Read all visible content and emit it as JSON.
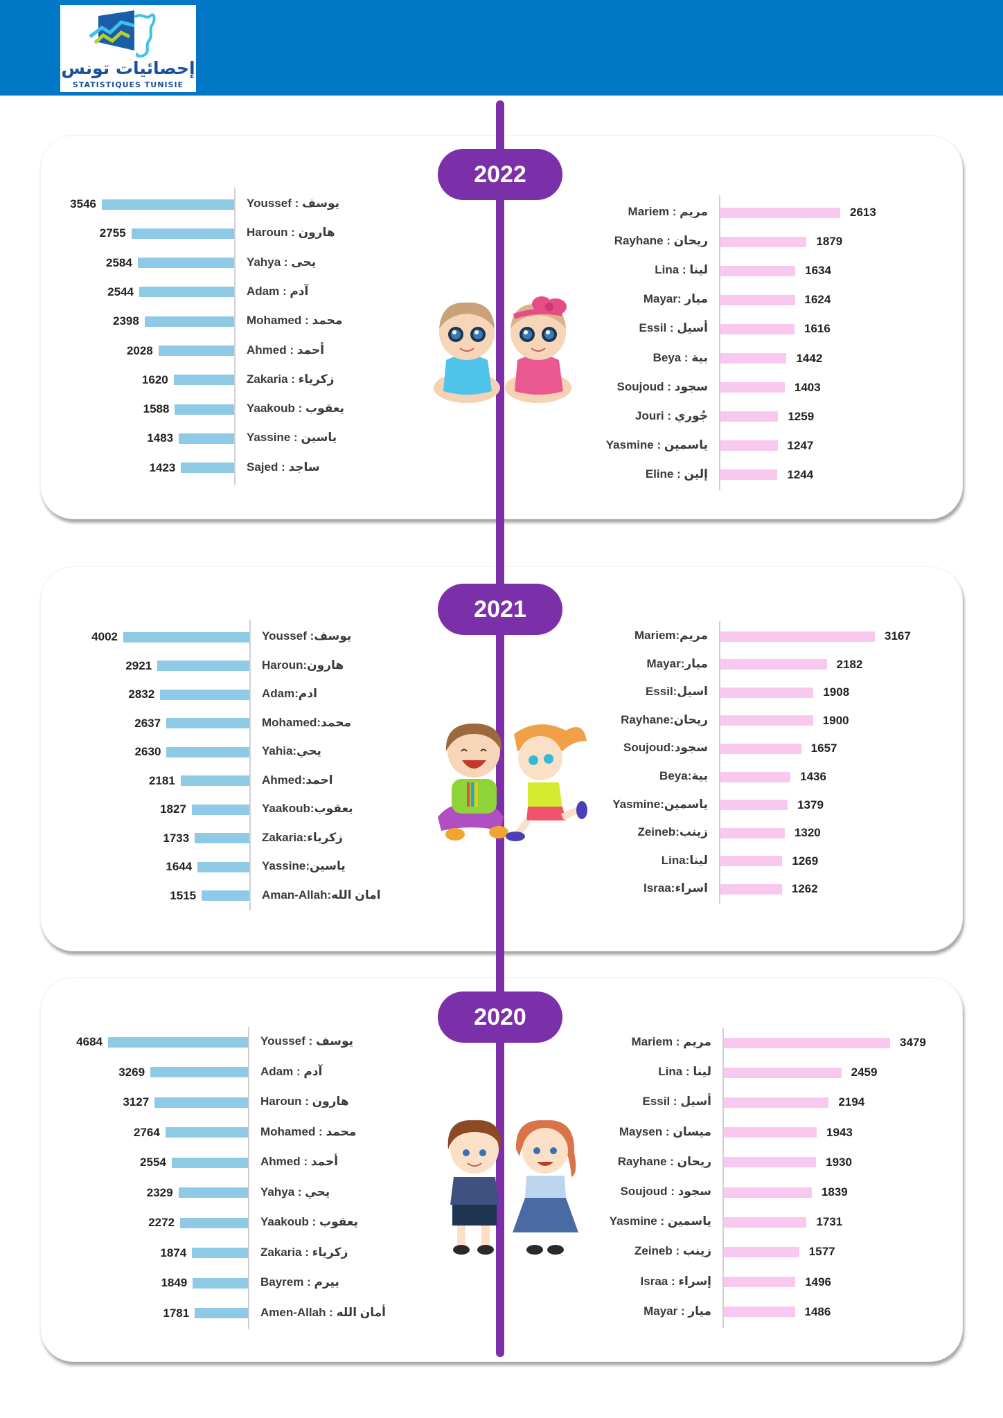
{
  "header": {
    "logo_arabic": "إحصائيات تونس",
    "logo_french": "STATISTIQUES TUNISIE",
    "brand_color": "#0277c6",
    "accent_color": "#7b2fa8"
  },
  "chart_data": [
    {
      "type": "bar",
      "year": "2022",
      "title": "2022",
      "series": [
        {
          "name": "boys",
          "color": "#8ecae6",
          "categories": [
            "Youssef : يوسف",
            "Haroun : هارون",
            "Yahya : يحى",
            "Adam : آدم",
            "Mohamed : محمد",
            "Ahmed : أحمد",
            "Zakaria : زكرياء",
            "Yaakoub  : يعقوب",
            "Yassine : ياسين",
            "Sajed : ساجد"
          ],
          "values": [
            3546,
            2755,
            2584,
            2544,
            2398,
            2028,
            1620,
            1588,
            1483,
            1423
          ],
          "labels": [
            "3546",
            "2755",
            "2584",
            "2544",
            "2398",
            "2028",
            "1620",
            "1588",
            "1483",
            "1423"
          ]
        },
        {
          "name": "girls",
          "color": "#f9c8ef",
          "categories": [
            "Mariem : مريم",
            "Rayhane : ريحان",
            "Lina : لينا",
            "Mayar: ميار",
            "Essil : أسيل",
            "Beya : بية",
            "Soujoud : سجود",
            "Jouri : جُوري",
            "Yasmine : ياسمين",
            "Eline : إلين"
          ],
          "values": [
            2613,
            1879,
            1634,
            1624,
            1616,
            1442,
            1403,
            1259,
            1247,
            1244
          ],
          "labels": [
            "2613",
            "1879",
            "1634",
            "1624",
            "1616",
            "1442",
            "1403",
            "1259",
            "1247",
            "1244"
          ]
        }
      ]
    },
    {
      "type": "bar",
      "year": "2021",
      "title": "2021",
      "series": [
        {
          "name": "boys",
          "color": "#8ecae6",
          "categories": [
            "Youssef :يوسف",
            "Haroun:هارون",
            "Adam:ادم",
            "Mohamed:محمد",
            "Yahia:يحي",
            "Ahmed:احمد",
            "Yaakoub:يعقوب",
            "Zakaria:زكرياء",
            "Yassine:ياسين",
            "Aman-Allah:امان الله"
          ],
          "values": [
            4002,
            2921,
            2832,
            2637,
            2630,
            2181,
            1827,
            1733,
            1644,
            1515
          ],
          "labels": [
            "4002",
            "2921",
            "2832",
            "2637",
            "2630",
            "2181",
            "1827",
            "1733",
            "1644",
            "1515"
          ]
        },
        {
          "name": "girls",
          "color": "#f9c8ef",
          "categories": [
            "Mariem:مريم",
            "Mayar:ميار",
            "Essil:اسيل",
            "Rayhane:ريحان",
            "Soujoud:سجود",
            "Beya:بية",
            "Yasmine:ياسمين",
            "Zeineb:زينب",
            "Lina:لينا",
            "Israa:اسراء"
          ],
          "values": [
            3167,
            2182,
            1908,
            1900,
            1657,
            1436,
            1379,
            1320,
            1269,
            1262
          ],
          "labels": [
            "3167",
            "2182",
            "1908",
            "1900",
            "1657",
            "1436",
            "1379",
            "1320",
            "1269",
            "1262"
          ]
        }
      ]
    },
    {
      "type": "bar",
      "year": "2020",
      "title": "2020",
      "series": [
        {
          "name": "boys",
          "color": "#8ecae6",
          "categories": [
            "Youssef : يوسف",
            "Adam : آدم",
            "Haroun : هارون",
            "Mohamed : محمد",
            "Ahmed : أحمد",
            "Yahya : يحي",
            "Yaakoub  : يعقوب",
            "Zakaria : زكرياء",
            "Bayrem : بيرم",
            "Amen-Allah : أمان الله"
          ],
          "values": [
            4684,
            3269,
            3127,
            2764,
            2554,
            2329,
            2272,
            1874,
            1849,
            1781
          ],
          "labels": [
            "4684",
            "3269",
            "3127",
            "2764",
            "2554",
            "2329",
            "2272",
            "1874",
            "1849",
            "1781"
          ]
        },
        {
          "name": "girls",
          "color": "#f9c8ef",
          "categories": [
            "Mariem : مريم",
            "Lina : لينا",
            "Essil : أسيل",
            "Maysen : ميسان",
            "Rayhane : ريحان",
            "Soujoud : سجود",
            "Yasmine : ياسمين",
            "Zeineb : زينب",
            "Israa : إسراء",
            "Mayar : ميار"
          ],
          "values": [
            3479,
            2459,
            2194,
            1943,
            1930,
            1839,
            1731,
            1577,
            1496,
            1486
          ],
          "labels": [
            "3479",
            "2459",
            "2194",
            "1943",
            "1930",
            "1839",
            "1731",
            "1577",
            "1496",
            "1486"
          ]
        }
      ]
    }
  ]
}
